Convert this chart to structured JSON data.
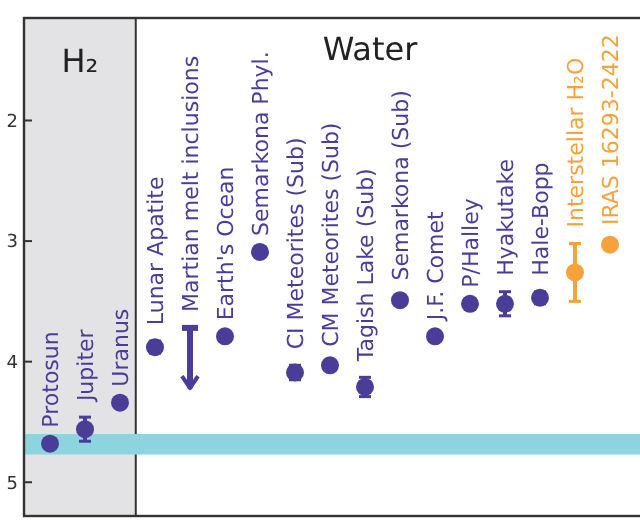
{
  "chart_data": {
    "type": "scatter",
    "categories": [
      "Protosun",
      "Jupiter",
      "Uranus",
      "Lunar Apatite",
      "Martian melt inclusions",
      "Earth's Ocean",
      "Semarkona Phyl.",
      "CI Meteorites (Sub)",
      "CM Meteorites (Sub)",
      "Tagish Lake (Sub)",
      "Semarkona (Sub)",
      "J.F. Comet",
      "P/Halley",
      "Hyakutake",
      "Hale-Bopp",
      "Interstellar H₂O",
      "IRAS 16293-2422"
    ],
    "series": [
      {
        "color": "#4a3d97",
        "values": [
          4.68,
          4.56,
          4.34,
          3.88,
          3.72,
          3.79,
          3.09,
          4.09,
          4.03,
          4.21,
          3.49,
          3.79,
          3.52,
          3.52,
          3.47,
          null,
          null
        ],
        "errors": [
          null,
          0.1,
          null,
          0.05,
          [
            3.72,
            4.22
          ],
          null,
          null,
          0.06,
          0.02,
          0.08,
          0.03,
          null,
          null,
          0.1,
          0.05,
          null,
          null
        ]
      },
      {
        "color": "#f5a23a",
        "values": [
          null,
          null,
          null,
          null,
          null,
          null,
          null,
          null,
          null,
          null,
          null,
          null,
          null,
          null,
          null,
          3.26,
          3.03
        ],
        "errors": [
          null,
          null,
          null,
          null,
          null,
          null,
          null,
          null,
          null,
          null,
          null,
          null,
          null,
          null,
          null,
          0.24,
          0.03
        ]
      }
    ],
    "ylim": [
      5.28,
      1.15
    ],
    "yticks": [
      2,
      3,
      4,
      5
    ],
    "bands": [
      {
        "axis": "y",
        "from": 4.6,
        "to": 4.77,
        "color": "#8dd5de"
      }
    ],
    "annotations": [
      "H₂",
      "Water"
    ],
    "marker": "circle",
    "grid": false
  }
}
